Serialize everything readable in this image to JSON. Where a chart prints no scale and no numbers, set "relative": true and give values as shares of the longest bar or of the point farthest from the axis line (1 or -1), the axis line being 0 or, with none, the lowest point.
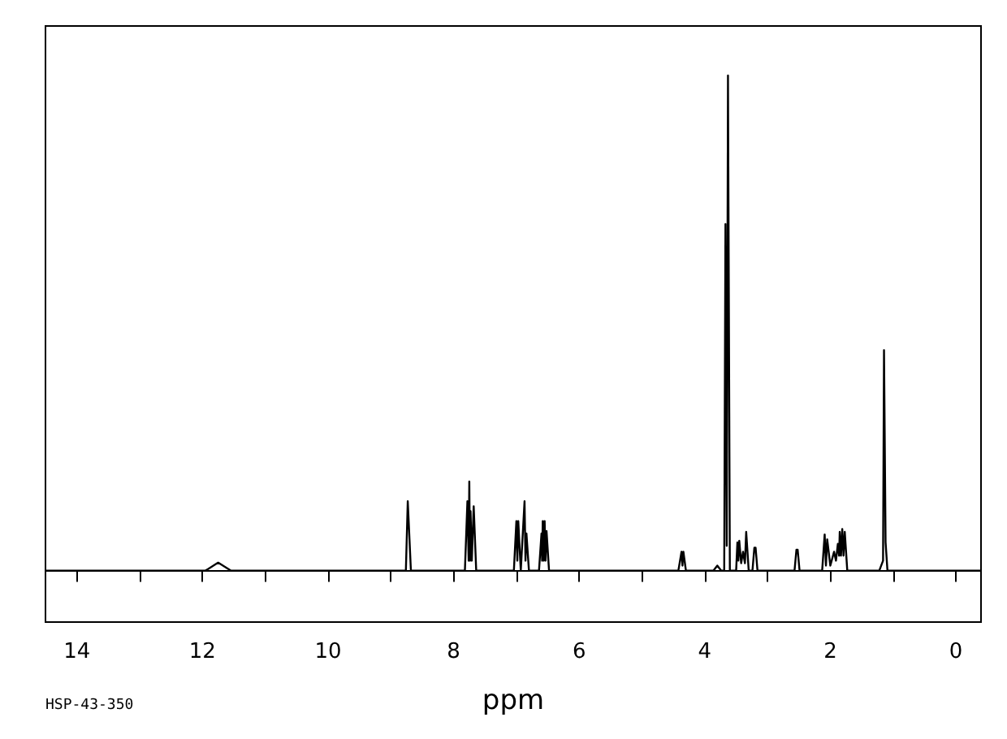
{
  "chart_data": {
    "type": "line",
    "relative": true,
    "xlabel": "ppm",
    "annotations": [
      "HSP-43-350"
    ],
    "grid": false,
    "marker": "none",
    "line_style": "solid",
    "xlim": [
      14.5,
      -0.4
    ],
    "xticks": [
      14,
      {
        "value": 13,
        "label": null
      },
      12,
      {
        "value": 11,
        "label": null
      },
      10,
      {
        "value": 9,
        "label": null
      },
      8,
      {
        "value": 7,
        "label": null
      },
      6,
      {
        "value": 5,
        "label": null
      },
      4,
      {
        "value": 3,
        "label": null
      },
      2,
      {
        "value": 1,
        "label": null
      },
      0
    ],
    "series": [
      {
        "color": "#000000",
        "x": [
          14.5,
          11.95,
          11.75,
          11.55,
          8.76,
          8.73,
          8.72,
          8.68,
          7.82,
          7.78,
          7.76,
          7.75,
          7.74,
          7.73,
          7.71,
          7.68,
          7.64,
          7.04,
          7.0,
          6.985,
          6.97,
          6.93,
          6.87,
          6.855,
          6.84,
          6.8,
          6.64,
          6.6,
          6.59,
          6.58,
          6.565,
          6.55,
          6.535,
          6.52,
          6.48,
          4.42,
          4.37,
          4.355,
          4.34,
          4.3,
          3.86,
          3.8,
          3.74,
          3.69,
          3.67,
          3.65,
          3.63,
          3.6,
          3.5,
          3.48,
          3.465,
          3.45,
          3.42,
          3.39,
          3.36,
          3.34,
          3.3,
          3.24,
          3.21,
          3.19,
          3.16,
          2.57,
          2.54,
          2.52,
          2.49,
          2.13,
          2.09,
          2.07,
          2.05,
          2.0,
          1.94,
          1.91,
          1.88,
          1.86,
          1.85,
          1.83,
          1.81,
          1.79,
          1.77,
          1.73,
          1.22,
          1.16,
          1.145,
          1.13,
          1.12,
          1.09,
          -0.4
        ],
        "values": [
          0,
          0,
          0.016,
          0,
          0,
          0.14,
          0.14,
          0,
          0,
          0.14,
          0.02,
          0.18,
          0.02,
          0.12,
          0.02,
          0.13,
          0,
          0,
          0.1,
          0.02,
          0.1,
          0,
          0.14,
          0.02,
          0.075,
          0,
          0,
          0.075,
          0.02,
          0.1,
          0.02,
          0.1,
          0.02,
          0.08,
          0,
          0,
          0.038,
          0.01,
          0.038,
          0,
          0,
          0.01,
          0,
          0,
          0.7,
          0.05,
          1,
          0,
          0,
          0.057,
          0.02,
          0.06,
          0.015,
          0.038,
          0.015,
          0.078,
          0,
          0,
          0.046,
          0.046,
          0,
          0,
          0.042,
          0.042,
          0,
          0,
          0.073,
          0.01,
          0.063,
          0.01,
          0.038,
          0.02,
          0.054,
          0.03,
          0.078,
          0.03,
          0.084,
          0.03,
          0.078,
          0,
          0,
          0.02,
          0.445,
          0.445,
          0.057,
          0,
          0
        ]
      }
    ]
  }
}
